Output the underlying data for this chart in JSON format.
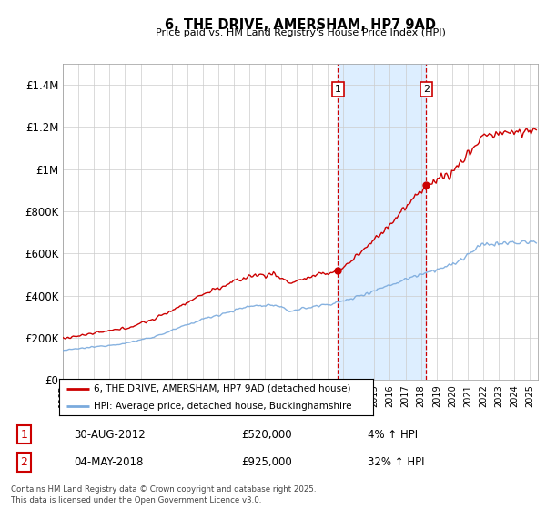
{
  "title": "6, THE DRIVE, AMERSHAM, HP7 9AD",
  "subtitle": "Price paid vs. HM Land Registry's House Price Index (HPI)",
  "ylabel_ticks": [
    "£0",
    "£200K",
    "£400K",
    "£600K",
    "£800K",
    "£1M",
    "£1.2M",
    "£1.4M"
  ],
  "ytick_values": [
    0,
    200000,
    400000,
    600000,
    800000,
    1000000,
    1200000,
    1400000
  ],
  "ylim": [
    0,
    1500000
  ],
  "xlim_start": 1995.0,
  "xlim_end": 2025.5,
  "purchase1_date": 2012.667,
  "purchase1_price": 520000,
  "purchase2_date": 2018.337,
  "purchase2_price": 925000,
  "red_line_color": "#cc0000",
  "blue_line_color": "#7aaadd",
  "highlight_fill": "#ddeeff",
  "grid_color": "#cccccc",
  "annotation_box_color": "#cc0000",
  "footer_text": "Contains HM Land Registry data © Crown copyright and database right 2025.\nThis data is licensed under the Open Government Licence v3.0.",
  "legend_entry1": "6, THE DRIVE, AMERSHAM, HP7 9AD (detached house)",
  "legend_entry2": "HPI: Average price, detached house, Buckinghamshire",
  "table_row1": [
    "1",
    "30-AUG-2012",
    "£520,000",
    "4% ↑ HPI"
  ],
  "table_row2": [
    "2",
    "04-MAY-2018",
    "£925,000",
    "32% ↑ HPI"
  ]
}
